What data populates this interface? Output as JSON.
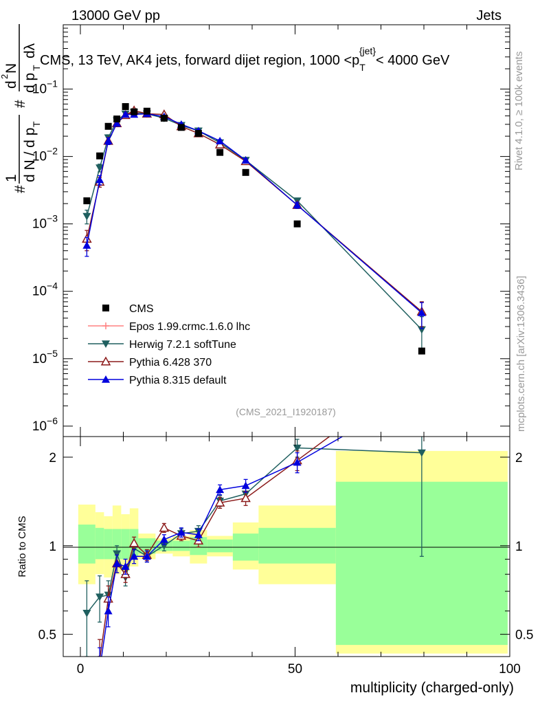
{
  "header": {
    "energy_label": "13000 GeV pp",
    "category_label": "Jets",
    "plot_title": "CMS, 13 TeV, AK4 jets, forward dijet region, 1000 <p_T^{jet}< 4000 GeV",
    "analysis_id": "(CMS_2021_I1920187)",
    "rivet_label": "Rivet 4.1.0, ≥ 100k events",
    "mcplots_label": "mcplots.cern.ch [arXiv:1306.3436]"
  },
  "chart_data": [
    {
      "type": "scatter",
      "panel": "main",
      "title": "CMS, 13 TeV, AK4 jets, forward dijet region, 1000 <p_T^{jet}< 4000 GeV",
      "xlabel": "multiplicity (charged-only)",
      "ylabel": "1/(dN/dp_T) d²N/(dp_T dλ)",
      "xlim": [
        -4,
        100
      ],
      "ylim": [
        7e-07,
        0.9
      ],
      "yscale": "log",
      "xticks": [
        "0",
        "50",
        "100"
      ],
      "yticks": [
        "10^-6",
        "10^-5",
        "10^-4",
        "10^-3",
        "10^-2",
        "10^-1"
      ],
      "legend_position": "lower-left",
      "series": [
        {
          "name": "CMS",
          "color": "#000000",
          "marker": "square",
          "points": [
            {
              "x": 1.5,
              "y": 0.0022
            },
            {
              "x": 4.5,
              "y": 0.0102
            },
            {
              "x": 6.5,
              "y": 0.028
            },
            {
              "x": 8.5,
              "y": 0.036
            },
            {
              "x": 10.5,
              "y": 0.055
            },
            {
              "x": 12.5,
              "y": 0.046
            },
            {
              "x": 15.5,
              "y": 0.047
            },
            {
              "x": 19.5,
              "y": 0.037
            },
            {
              "x": 23.5,
              "y": 0.027
            },
            {
              "x": 27.5,
              "y": 0.022
            },
            {
              "x": 32.5,
              "y": 0.0115
            },
            {
              "x": 38.5,
              "y": 0.0058
            },
            {
              "x": 50.5,
              "y": 0.001
            },
            {
              "x": 79.5,
              "y": 1.3e-05
            }
          ]
        },
        {
          "name": "Epos 1.99.crmc.1.6.0 lhc",
          "color": "#ff8080",
          "marker": "cross",
          "points": []
        },
        {
          "name": "Herwig 7.2.1 softTune",
          "color": "#1f5f5f",
          "marker": "triangle-down",
          "points": [
            {
              "x": 1.5,
              "y": 0.0013,
              "err": 0.0003
            },
            {
              "x": 4.5,
              "y": 0.0068,
              "err": 0.0009
            },
            {
              "x": 6.5,
              "y": 0.019,
              "err": 0.002
            },
            {
              "x": 8.5,
              "y": 0.034,
              "err": 0.002
            },
            {
              "x": 10.5,
              "y": 0.043,
              "err": 0.002
            },
            {
              "x": 12.5,
              "y": 0.045,
              "err": 0.002
            },
            {
              "x": 15.5,
              "y": 0.043,
              "err": 0.002
            },
            {
              "x": 19.5,
              "y": 0.037,
              "err": 0.002
            },
            {
              "x": 23.5,
              "y": 0.029,
              "err": 0.0015
            },
            {
              "x": 27.5,
              "y": 0.024,
              "err": 0.0012
            },
            {
              "x": 32.5,
              "y": 0.016,
              "err": 0.0008
            },
            {
              "x": 38.5,
              "y": 0.0088,
              "err": 0.0005
            },
            {
              "x": 50.5,
              "y": 0.0022,
              "err": 0.0002
            },
            {
              "x": 79.5,
              "y": 2.7e-05,
              "err": 1.5e-05
            }
          ]
        },
        {
          "name": "Pythia 6.428 370",
          "color": "#8b1a1a",
          "marker": "triangle-open",
          "points": [
            {
              "x": 1.5,
              "y": 0.0006,
              "err": 0.0002
            },
            {
              "x": 4.5,
              "y": 0.0042,
              "err": 0.0007
            },
            {
              "x": 6.5,
              "y": 0.017,
              "err": 0.002
            },
            {
              "x": 8.5,
              "y": 0.031,
              "err": 0.002
            },
            {
              "x": 10.5,
              "y": 0.041,
              "err": 0.002
            },
            {
              "x": 12.5,
              "y": 0.048,
              "err": 0.002
            },
            {
              "x": 15.5,
              "y": 0.043,
              "err": 0.002
            },
            {
              "x": 19.5,
              "y": 0.042,
              "err": 0.002
            },
            {
              "x": 23.5,
              "y": 0.028,
              "err": 0.0015
            },
            {
              "x": 27.5,
              "y": 0.022,
              "err": 0.0012
            },
            {
              "x": 32.5,
              "y": 0.015,
              "err": 0.0008
            },
            {
              "x": 38.5,
              "y": 0.0085,
              "err": 0.0005
            },
            {
              "x": 50.5,
              "y": 0.0019,
              "err": 0.0002
            },
            {
              "x": 79.5,
              "y": 5e-05,
              "err": 2e-05
            }
          ]
        },
        {
          "name": "Pythia 8.315 default",
          "color": "#0000dd",
          "marker": "triangle-up",
          "points": [
            {
              "x": 1.5,
              "y": 0.00048,
              "err": 0.00015
            },
            {
              "x": 4.5,
              "y": 0.0045,
              "err": 0.0007
            },
            {
              "x": 6.5,
              "y": 0.017,
              "err": 0.002
            },
            {
              "x": 8.5,
              "y": 0.031,
              "err": 0.002
            },
            {
              "x": 10.5,
              "y": 0.042,
              "err": 0.002
            },
            {
              "x": 12.5,
              "y": 0.042,
              "err": 0.002
            },
            {
              "x": 15.5,
              "y": 0.043,
              "err": 0.002
            },
            {
              "x": 19.5,
              "y": 0.039,
              "err": 0.002
            },
            {
              "x": 23.5,
              "y": 0.03,
              "err": 0.0015
            },
            {
              "x": 27.5,
              "y": 0.024,
              "err": 0.0012
            },
            {
              "x": 32.5,
              "y": 0.017,
              "err": 0.0008
            },
            {
              "x": 38.5,
              "y": 0.0088,
              "err": 0.0005
            },
            {
              "x": 50.5,
              "y": 0.0019,
              "err": 0.0002
            },
            {
              "x": 79.5,
              "y": 4.8e-05,
              "err": 2e-05
            }
          ]
        }
      ]
    },
    {
      "type": "line",
      "panel": "ratio",
      "ylabel": "Ratio to CMS",
      "xlabel": "multiplicity (charged-only)",
      "xlim": [
        -4,
        100
      ],
      "ylim": [
        0.42,
        2.35
      ],
      "yscale": "log",
      "yticks": [
        "0.5",
        "1",
        "2"
      ],
      "xticks": [
        "0",
        "50",
        "100"
      ],
      "bands": [
        {
          "x0": -0.5,
          "x1": 3.5,
          "in_lo": 0.87,
          "in_hi": 1.18,
          "out_lo": 0.74,
          "out_hi": 1.38
        },
        {
          "x0": 3.5,
          "x1": 5.5,
          "in_lo": 0.9,
          "in_hi": 1.15,
          "out_lo": 0.8,
          "out_hi": 1.3
        },
        {
          "x0": 5.5,
          "x1": 7.5,
          "in_lo": 0.9,
          "in_hi": 1.14,
          "out_lo": 0.78,
          "out_hi": 1.26
        },
        {
          "x0": 7.5,
          "x1": 9.5,
          "in_lo": 0.9,
          "in_hi": 1.14,
          "out_lo": 0.8,
          "out_hi": 1.37
        },
        {
          "x0": 9.5,
          "x1": 11.5,
          "in_lo": 0.9,
          "in_hi": 1.14,
          "out_lo": 0.82,
          "out_hi": 1.28
        },
        {
          "x0": 11.5,
          "x1": 13.5,
          "in_lo": 0.92,
          "in_hi": 1.14,
          "out_lo": 0.85,
          "out_hi": 1.34
        },
        {
          "x0": 13.5,
          "x1": 17.5,
          "in_lo": 0.94,
          "in_hi": 1.06,
          "out_lo": 0.9,
          "out_hi": 1.1
        },
        {
          "x0": 17.5,
          "x1": 21.5,
          "in_lo": 0.96,
          "in_hi": 1.04,
          "out_lo": 0.94,
          "out_hi": 1.06
        },
        {
          "x0": 21.5,
          "x1": 25.5,
          "in_lo": 0.96,
          "in_hi": 1.04,
          "out_lo": 0.92,
          "out_hi": 1.08
        },
        {
          "x0": 25.5,
          "x1": 29.5,
          "in_lo": 0.93,
          "in_hi": 1.07,
          "out_lo": 0.87,
          "out_hi": 1.13
        },
        {
          "x0": 29.5,
          "x1": 35.5,
          "in_lo": 0.95,
          "in_hi": 1.05,
          "out_lo": 0.92,
          "out_hi": 1.08
        },
        {
          "x0": 35.5,
          "x1": 41.5,
          "in_lo": 0.89,
          "in_hi": 1.1,
          "out_lo": 0.83,
          "out_hi": 1.2
        },
        {
          "x0": 41.5,
          "x1": 59.5,
          "in_lo": 0.87,
          "in_hi": 1.15,
          "out_lo": 0.74,
          "out_hi": 1.37
        },
        {
          "x0": 59.5,
          "x1": 99.5,
          "in_lo": 0.46,
          "in_hi": 1.65,
          "out_lo": 0.43,
          "out_hi": 2.1
        }
      ],
      "series": [
        {
          "name": "Herwig 7.2.1 softTune",
          "color": "#1f5f5f",
          "marker": "triangle-down",
          "points": [
            {
              "x": 1.5,
              "y": 0.59,
              "err": 0.17
            },
            {
              "x": 4.5,
              "y": 0.67,
              "err": 0.12
            },
            {
              "x": 6.5,
              "y": 0.68,
              "err": 0.08
            },
            {
              "x": 8.5,
              "y": 0.94,
              "err": 0.06
            },
            {
              "x": 10.5,
              "y": 0.78,
              "err": 0.05
            },
            {
              "x": 12.5,
              "y": 0.98,
              "err": 0.05
            },
            {
              "x": 15.5,
              "y": 0.92,
              "err": 0.04
            },
            {
              "x": 19.5,
              "y": 1.0,
              "err": 0.04
            },
            {
              "x": 23.5,
              "y": 1.1,
              "err": 0.04
            },
            {
              "x": 27.5,
              "y": 1.12,
              "err": 0.05
            },
            {
              "x": 32.5,
              "y": 1.42,
              "err": 0.06
            },
            {
              "x": 38.5,
              "y": 1.5,
              "err": 0.08
            },
            {
              "x": 50.5,
              "y": 2.15,
              "err": 0.15
            },
            {
              "x": 79.5,
              "y": 2.07,
              "err": 1.15
            }
          ]
        },
        {
          "name": "Pythia 6.428 370",
          "color": "#8b1a1a",
          "marker": "triangle-open",
          "points": [
            {
              "x": 4.5,
              "y": 0.41,
              "err": 0.07
            },
            {
              "x": 6.5,
              "y": 0.66,
              "err": 0.07
            },
            {
              "x": 8.5,
              "y": 0.87,
              "err": 0.06
            },
            {
              "x": 10.5,
              "y": 0.8,
              "err": 0.05
            },
            {
              "x": 12.5,
              "y": 1.02,
              "err": 0.05
            },
            {
              "x": 15.5,
              "y": 0.93,
              "err": 0.04
            },
            {
              "x": 19.5,
              "y": 1.15,
              "err": 0.04
            },
            {
              "x": 23.5,
              "y": 1.08,
              "err": 0.04
            },
            {
              "x": 27.5,
              "y": 1.04,
              "err": 0.05
            },
            {
              "x": 32.5,
              "y": 1.4,
              "err": 0.06
            },
            {
              "x": 38.5,
              "y": 1.45,
              "err": 0.08
            },
            {
              "x": 50.5,
              "y": 1.95,
              "err": 0.15
            },
            {
              "x": 58.0,
              "y": 2.35
            }
          ]
        },
        {
          "name": "Pythia 8.315 default",
          "color": "#0000dd",
          "marker": "triangle-up",
          "points": [
            {
              "x": 4.5,
              "y": 0.38,
              "err": 0.07
            },
            {
              "x": 6.5,
              "y": 0.6,
              "err": 0.07
            },
            {
              "x": 8.5,
              "y": 0.87,
              "err": 0.06
            },
            {
              "x": 10.5,
              "y": 0.85,
              "err": 0.05
            },
            {
              "x": 12.5,
              "y": 0.92,
              "err": 0.05
            },
            {
              "x": 15.5,
              "y": 0.92,
              "err": 0.04
            },
            {
              "x": 19.5,
              "y": 1.05,
              "err": 0.04
            },
            {
              "x": 23.5,
              "y": 1.11,
              "err": 0.04
            },
            {
              "x": 27.5,
              "y": 1.09,
              "err": 0.05
            },
            {
              "x": 32.5,
              "y": 1.55,
              "err": 0.06
            },
            {
              "x": 38.5,
              "y": 1.6,
              "err": 0.08
            },
            {
              "x": 50.5,
              "y": 1.92,
              "err": 0.15
            },
            {
              "x": 61.0,
              "y": 2.35
            }
          ]
        }
      ]
    }
  ]
}
